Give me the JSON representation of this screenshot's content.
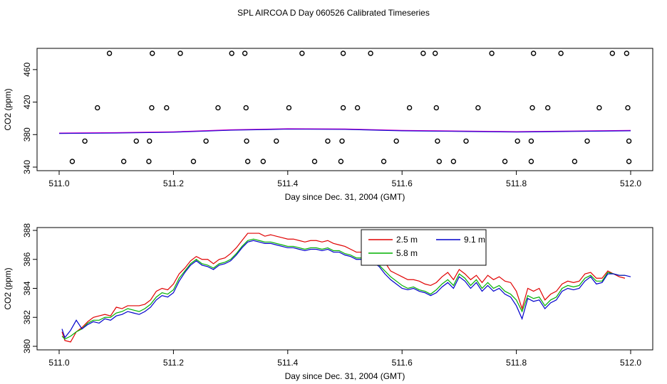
{
  "figure": {
    "title": "SPL AIRCOA D  Day 060526  Calibrated Timeseries"
  },
  "colors": {
    "h25": "#e00000",
    "h58": "#00b000",
    "h91": "#0000cc",
    "violet": "#cc00cc"
  },
  "chart_data": [
    {
      "type": "scatter",
      "xlabel": "Day since Dec. 31, 2004 (GMT)",
      "ylabel": "CO2 (ppm)",
      "xlim": [
        511.0,
        512.0
      ],
      "ylim": [
        340,
        480
      ],
      "xticks": [
        "511.0",
        "511.2",
        "511.4",
        "511.6",
        "511.8",
        "512.0"
      ],
      "yticks": [
        "340",
        "380",
        "420",
        "460"
      ],
      "grid": false,
      "calibration_points": [
        {
          "x": 511.088,
          "y": 480
        },
        {
          "x": 511.163,
          "y": 480
        },
        {
          "x": 511.212,
          "y": 480
        },
        {
          "x": 511.302,
          "y": 480
        },
        {
          "x": 511.325,
          "y": 480
        },
        {
          "x": 511.425,
          "y": 480
        },
        {
          "x": 511.497,
          "y": 480
        },
        {
          "x": 511.545,
          "y": 480
        },
        {
          "x": 511.637,
          "y": 480
        },
        {
          "x": 511.658,
          "y": 480
        },
        {
          "x": 511.757,
          "y": 480
        },
        {
          "x": 511.83,
          "y": 480
        },
        {
          "x": 511.878,
          "y": 480
        },
        {
          "x": 511.968,
          "y": 480
        },
        {
          "x": 511.993,
          "y": 480
        },
        {
          "x": 511.067,
          "y": 413
        },
        {
          "x": 511.162,
          "y": 413
        },
        {
          "x": 511.188,
          "y": 413
        },
        {
          "x": 511.278,
          "y": 413
        },
        {
          "x": 511.327,
          "y": 413
        },
        {
          "x": 511.402,
          "y": 413
        },
        {
          "x": 511.497,
          "y": 413
        },
        {
          "x": 511.522,
          "y": 413
        },
        {
          "x": 511.613,
          "y": 413
        },
        {
          "x": 511.66,
          "y": 413
        },
        {
          "x": 511.733,
          "y": 413
        },
        {
          "x": 511.828,
          "y": 413
        },
        {
          "x": 511.855,
          "y": 413
        },
        {
          "x": 511.945,
          "y": 413
        },
        {
          "x": 511.995,
          "y": 413
        },
        {
          "x": 511.045,
          "y": 372
        },
        {
          "x": 511.135,
          "y": 372
        },
        {
          "x": 511.158,
          "y": 372
        },
        {
          "x": 511.257,
          "y": 372
        },
        {
          "x": 511.328,
          "y": 372
        },
        {
          "x": 511.38,
          "y": 372
        },
        {
          "x": 511.47,
          "y": 372
        },
        {
          "x": 511.495,
          "y": 372
        },
        {
          "x": 511.59,
          "y": 372
        },
        {
          "x": 511.662,
          "y": 372
        },
        {
          "x": 511.712,
          "y": 372
        },
        {
          "x": 511.802,
          "y": 372
        },
        {
          "x": 511.826,
          "y": 372
        },
        {
          "x": 511.924,
          "y": 372
        },
        {
          "x": 511.997,
          "y": 372
        },
        {
          "x": 511.023,
          "y": 347
        },
        {
          "x": 511.113,
          "y": 347
        },
        {
          "x": 511.157,
          "y": 347
        },
        {
          "x": 511.235,
          "y": 347
        },
        {
          "x": 511.33,
          "y": 347
        },
        {
          "x": 511.357,
          "y": 347
        },
        {
          "x": 511.447,
          "y": 347
        },
        {
          "x": 511.493,
          "y": 347
        },
        {
          "x": 511.568,
          "y": 347
        },
        {
          "x": 511.665,
          "y": 347
        },
        {
          "x": 511.69,
          "y": 347
        },
        {
          "x": 511.78,
          "y": 347
        },
        {
          "x": 511.826,
          "y": 347
        },
        {
          "x": 511.902,
          "y": 347
        },
        {
          "x": 511.997,
          "y": 347
        }
      ],
      "series_x": [
        511.0,
        511.1,
        511.2,
        511.3,
        511.4,
        511.5,
        511.6,
        511.7,
        511.8,
        511.9,
        512.0
      ],
      "series_y": [
        381.5,
        382.0,
        383.0,
        385.5,
        386.8,
        386.5,
        384.8,
        384.0,
        383.2,
        384.0,
        384.8
      ]
    },
    {
      "type": "line",
      "xlabel": "Day since Dec. 31, 2004 (GMT)",
      "ylabel": "CO2 (ppm)",
      "xlim": [
        511.0,
        512.0
      ],
      "ylim": [
        380,
        388
      ],
      "xticks": [
        "511.0",
        "511.2",
        "511.4",
        "511.6",
        "511.8",
        "512.0"
      ],
      "yticks": [
        "380",
        "382",
        "384",
        "386",
        "388"
      ],
      "grid": false,
      "legend_position": "top-center-right",
      "series": [
        {
          "name": "2.5 m",
          "x": [
            511.005,
            511.01,
            511.02,
            511.03,
            511.04,
            511.05,
            511.06,
            511.07,
            511.08,
            511.09,
            511.1,
            511.11,
            511.12,
            511.13,
            511.14,
            511.15,
            511.16,
            511.17,
            511.18,
            511.19,
            511.2,
            511.21,
            511.22,
            511.23,
            511.24,
            511.25,
            511.26,
            511.27,
            511.28,
            511.29,
            511.3,
            511.31,
            511.32,
            511.33,
            511.34,
            511.35,
            511.36,
            511.37,
            511.38,
            511.39,
            511.4,
            511.41,
            511.42,
            511.43,
            511.44,
            511.45,
            511.46,
            511.47,
            511.48,
            511.49,
            511.5,
            511.51,
            511.52,
            511.53,
            511.54,
            511.55,
            511.56,
            511.57,
            511.58,
            511.59,
            511.6,
            511.61,
            511.62,
            511.63,
            511.64,
            511.65,
            511.66,
            511.67,
            511.68,
            511.69,
            511.7,
            511.71,
            511.72,
            511.73,
            511.74,
            511.75,
            511.76,
            511.77,
            511.78,
            511.79,
            511.8,
            511.81,
            511.82,
            511.83,
            511.84,
            511.85,
            511.86,
            511.87,
            511.88,
            511.89,
            511.9,
            511.91,
            511.92,
            511.93,
            511.94,
            511.95,
            511.96,
            511.97,
            511.98,
            511.99
          ],
          "y": [
            381.0,
            380.4,
            380.3,
            381.0,
            381.3,
            381.7,
            382.0,
            382.1,
            382.2,
            382.1,
            382.7,
            382.6,
            382.8,
            382.8,
            382.8,
            382.9,
            383.2,
            383.8,
            384.0,
            383.9,
            384.3,
            385.0,
            385.4,
            385.9,
            386.2,
            386.0,
            386.0,
            385.7,
            386.0,
            386.1,
            386.4,
            386.8,
            387.3,
            387.8,
            387.8,
            387.8,
            387.6,
            387.7,
            387.6,
            387.5,
            387.4,
            387.4,
            387.3,
            387.2,
            387.3,
            387.3,
            387.2,
            387.3,
            387.1,
            387.0,
            386.9,
            386.7,
            386.5,
            386.5,
            386.4,
            386.4,
            386.2,
            385.8,
            385.2,
            385.0,
            384.8,
            384.6,
            384.6,
            384.5,
            384.3,
            384.2,
            384.4,
            384.8,
            385.1,
            384.6,
            385.3,
            385.0,
            384.6,
            384.9,
            384.4,
            384.9,
            384.6,
            384.8,
            384.5,
            384.4,
            383.8,
            382.6,
            384.0,
            383.8,
            384.0,
            383.2,
            383.6,
            383.8,
            384.3,
            384.5,
            384.4,
            384.5,
            385.0,
            385.1,
            384.7,
            384.7,
            385.2,
            385.0,
            384.8,
            384.7
          ]
        },
        {
          "name": "5.8 m",
          "x": [
            511.005,
            511.01,
            511.02,
            511.03,
            511.04,
            511.05,
            511.06,
            511.07,
            511.08,
            511.09,
            511.1,
            511.11,
            511.12,
            511.13,
            511.14,
            511.15,
            511.16,
            511.17,
            511.18,
            511.19,
            511.2,
            511.21,
            511.22,
            511.23,
            511.24,
            511.25,
            511.26,
            511.27,
            511.28,
            511.29,
            511.3,
            511.31,
            511.32,
            511.33,
            511.34,
            511.35,
            511.36,
            511.37,
            511.38,
            511.39,
            511.4,
            511.41,
            511.42,
            511.43,
            511.44,
            511.45,
            511.46,
            511.47,
            511.48,
            511.49,
            511.5,
            511.51,
            511.52,
            511.53,
            511.54,
            511.55,
            511.56,
            511.57,
            511.58,
            511.59,
            511.6,
            511.61,
            511.62,
            511.63,
            511.64,
            511.65,
            511.66,
            511.67,
            511.68,
            511.69,
            511.7,
            511.71,
            511.72,
            511.73,
            511.74,
            511.75,
            511.76,
            511.77,
            511.78,
            511.79,
            511.8,
            511.81,
            511.82,
            511.83,
            511.84,
            511.85,
            511.86,
            511.87,
            511.88,
            511.89,
            511.9,
            511.91,
            511.92,
            511.93,
            511.94,
            511.95,
            511.96,
            511.97,
            511.98,
            511.99
          ],
          "y": [
            380.7,
            380.5,
            380.7,
            381.0,
            381.2,
            381.6,
            381.8,
            381.8,
            382.0,
            382.0,
            382.3,
            382.4,
            382.6,
            382.5,
            382.4,
            382.6,
            382.9,
            383.4,
            383.7,
            383.6,
            383.9,
            384.7,
            385.2,
            385.7,
            386.0,
            385.7,
            385.6,
            385.4,
            385.7,
            385.8,
            386.0,
            386.4,
            386.9,
            387.3,
            387.4,
            387.3,
            387.2,
            387.2,
            387.1,
            387.0,
            386.9,
            386.9,
            386.8,
            386.7,
            386.8,
            386.8,
            386.7,
            386.8,
            386.6,
            386.6,
            386.4,
            386.3,
            386.1,
            386.1,
            386.0,
            385.9,
            385.6,
            385.2,
            384.8,
            384.5,
            384.2,
            384.0,
            384.1,
            383.9,
            383.8,
            383.6,
            383.9,
            384.3,
            384.6,
            384.2,
            385.0,
            384.7,
            384.2,
            384.6,
            384.0,
            384.4,
            384.0,
            384.2,
            383.8,
            383.6,
            383.2,
            382.4,
            383.5,
            383.3,
            383.4,
            382.8,
            383.2,
            383.4,
            384.0,
            384.2,
            384.1,
            384.2,
            384.7,
            384.9,
            384.5,
            384.5,
            385.1,
            385.0,
            384.9,
            384.9
          ]
        },
        {
          "name": "9.1 m",
          "x": [
            511.005,
            511.01,
            511.02,
            511.03,
            511.04,
            511.05,
            511.06,
            511.07,
            511.08,
            511.09,
            511.1,
            511.11,
            511.12,
            511.13,
            511.14,
            511.15,
            511.16,
            511.17,
            511.18,
            511.19,
            511.2,
            511.21,
            511.22,
            511.23,
            511.24,
            511.25,
            511.26,
            511.27,
            511.28,
            511.29,
            511.3,
            511.31,
            511.32,
            511.33,
            511.34,
            511.35,
            511.36,
            511.37,
            511.38,
            511.39,
            511.4,
            511.41,
            511.42,
            511.43,
            511.44,
            511.45,
            511.46,
            511.47,
            511.48,
            511.49,
            511.5,
            511.51,
            511.52,
            511.53,
            511.54,
            511.55,
            511.56,
            511.57,
            511.58,
            511.59,
            511.6,
            511.61,
            511.62,
            511.63,
            511.64,
            511.65,
            511.66,
            511.67,
            511.68,
            511.69,
            511.7,
            511.71,
            511.72,
            511.73,
            511.74,
            511.75,
            511.76,
            511.77,
            511.78,
            511.79,
            511.8,
            511.81,
            511.82,
            511.83,
            511.84,
            511.85,
            511.86,
            511.87,
            511.88,
            511.89,
            511.9,
            511.91,
            511.92,
            511.93,
            511.94,
            511.95,
            511.96,
            511.97,
            511.98,
            511.99,
            512.0
          ],
          "y": [
            381.2,
            380.6,
            381.1,
            381.8,
            381.2,
            381.5,
            381.7,
            381.6,
            381.9,
            381.8,
            382.1,
            382.2,
            382.4,
            382.3,
            382.2,
            382.4,
            382.7,
            383.2,
            383.5,
            383.4,
            383.7,
            384.5,
            385.1,
            385.6,
            385.9,
            385.6,
            385.5,
            385.3,
            385.6,
            385.7,
            385.9,
            386.3,
            386.8,
            387.2,
            387.3,
            387.2,
            387.1,
            387.1,
            387.0,
            386.9,
            386.8,
            386.8,
            386.7,
            386.6,
            386.7,
            386.7,
            386.6,
            386.7,
            386.5,
            386.5,
            386.3,
            386.2,
            386.0,
            386.0,
            385.9,
            385.8,
            385.5,
            385.0,
            384.6,
            384.3,
            384.0,
            383.9,
            384.0,
            383.8,
            383.7,
            383.5,
            383.7,
            384.1,
            384.4,
            384.0,
            384.8,
            384.5,
            384.0,
            384.4,
            383.8,
            384.2,
            383.8,
            384.0,
            383.6,
            383.4,
            382.8,
            381.9,
            383.3,
            383.1,
            383.2,
            382.6,
            383.0,
            383.2,
            383.8,
            384.0,
            383.9,
            384.0,
            384.5,
            384.8,
            384.3,
            384.4,
            385.0,
            385.0,
            384.9,
            384.9,
            384.8
          ]
        }
      ]
    }
  ]
}
